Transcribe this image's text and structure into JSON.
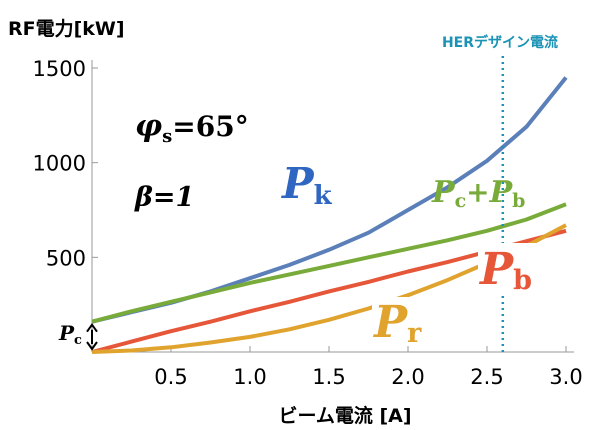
{
  "chart_data": {
    "type": "line",
    "title": "",
    "ylabel": "RF電力[kW]",
    "xlabel": "ビーム電流 [A]",
    "xlim": [
      0,
      3.0
    ],
    "ylim": [
      0,
      1500
    ],
    "x_ticks": [
      "0.5",
      "1.0",
      "1.5",
      "2.0",
      "2.5",
      "3.0"
    ],
    "x_tick_values": [
      0.5,
      1.0,
      1.5,
      2.0,
      2.5,
      3.0
    ],
    "y_ticks": [
      "500",
      "1000",
      "1500"
    ],
    "y_tick_values": [
      500,
      1000,
      1500
    ],
    "grid": false,
    "x": [
      0,
      0.25,
      0.5,
      0.75,
      1.0,
      1.25,
      1.5,
      1.75,
      2.0,
      2.25,
      2.5,
      2.75,
      3.0
    ],
    "series": [
      {
        "id": "Pk",
        "color": "#5b7fb8",
        "values": [
          160,
          210,
          260,
          320,
          390,
          460,
          540,
          630,
          750,
          870,
          1010,
          1190,
          1450
        ]
      },
      {
        "id": "Pcb",
        "color": "#79ab3a",
        "values": [
          160,
          215,
          265,
          315,
          365,
          410,
          455,
          500,
          545,
          590,
          640,
          700,
          780
        ]
      },
      {
        "id": "Pb",
        "color": "#e6573a",
        "values": [
          0,
          55,
          110,
          160,
          215,
          265,
          320,
          370,
          425,
          475,
          530,
          585,
          640
        ]
      },
      {
        "id": "Pr",
        "color": "#e0a32e",
        "values": [
          0,
          8,
          25,
          50,
          80,
          120,
          170,
          230,
          300,
          380,
          470,
          560,
          670
        ]
      }
    ],
    "her_current": 2.6,
    "her_label": "HERデザイン電流",
    "pc_value": 160,
    "annotations": {
      "phi_main": "φ",
      "phi_sub": "s",
      "phi_value": "=65°",
      "beta": "β=1",
      "pk_main": "P",
      "pk_sub": "k",
      "pcb_main1": "P",
      "pcb_sub1": "c",
      "pcb_plus": "+",
      "pcb_main2": "P",
      "pcb_sub2": "b",
      "pb_main": "P",
      "pb_sub": "b",
      "pr_main": "P",
      "pr_sub": "r",
      "pc_main": "P",
      "pc_sub": "c"
    }
  }
}
